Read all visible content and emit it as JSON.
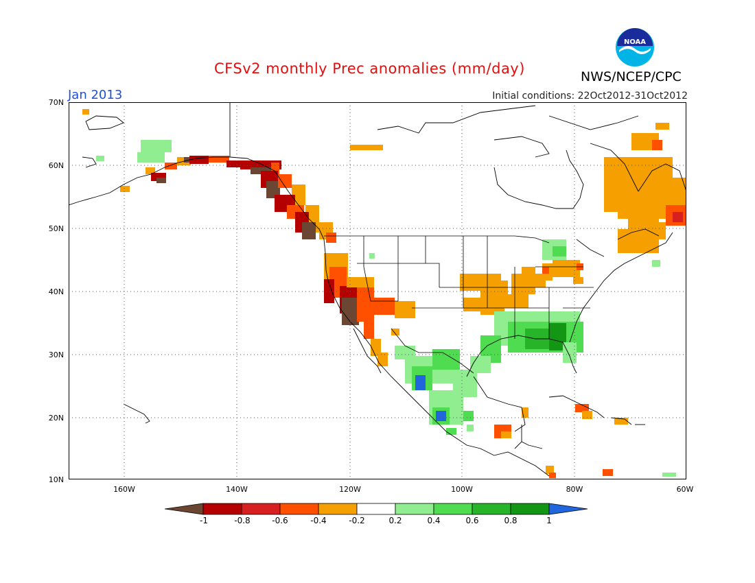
{
  "header": {
    "title": "CFSv2 monthly Prec anomalies (mm/day)",
    "month": "Jan 2013",
    "initial_conditions": "Initial conditions: 22Oct2012-31Oct2012",
    "agency": "NWS/NCEP/CPC",
    "logo_text": "NOAA"
  },
  "map": {
    "lat_labels": [
      "70N",
      "60N",
      "50N",
      "40N",
      "30N",
      "20N",
      "10N"
    ],
    "lon_labels": [
      "160W",
      "140W",
      "120W",
      "100W",
      "80W",
      "60W"
    ],
    "extent": {
      "lon": [
        -171,
        -60
      ],
      "lat": [
        10,
        70
      ]
    },
    "gridlines": "dotted"
  },
  "colorbar": {
    "labels": [
      "-1",
      "-0.8",
      "-0.6",
      "-0.4",
      "-0.2",
      "0.2",
      "0.4",
      "0.6",
      "0.8",
      "1"
    ],
    "colors": [
      "#6b4632",
      "#b40000",
      "#d82020",
      "#ff5000",
      "#f5a000",
      "#ffffff",
      "#90ee90",
      "#50dc50",
      "#28b428",
      "#139613",
      "#2266dd"
    ]
  }
}
